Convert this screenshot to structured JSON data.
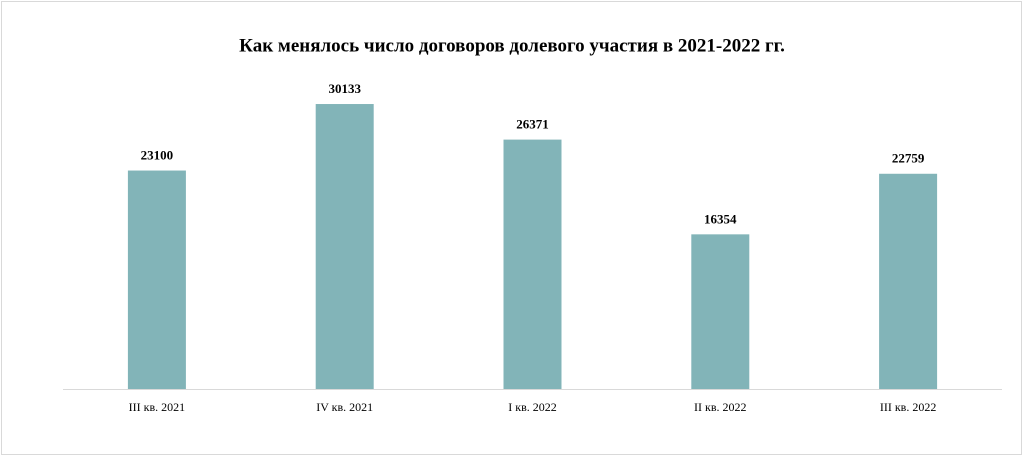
{
  "chart_data": {
    "type": "bar",
    "title": "Как менялось число договоров долевого участия в 2021-2022 гг.",
    "categories": [
      "III кв. 2021",
      "IV кв. 2021",
      "I кв. 2022",
      "II кв. 2022",
      "III кв. 2022"
    ],
    "values": [
      23100,
      30133,
      26371,
      16354,
      22759
    ],
    "color": "#82b4b8",
    "ylim": [
      0,
      35000
    ]
  }
}
